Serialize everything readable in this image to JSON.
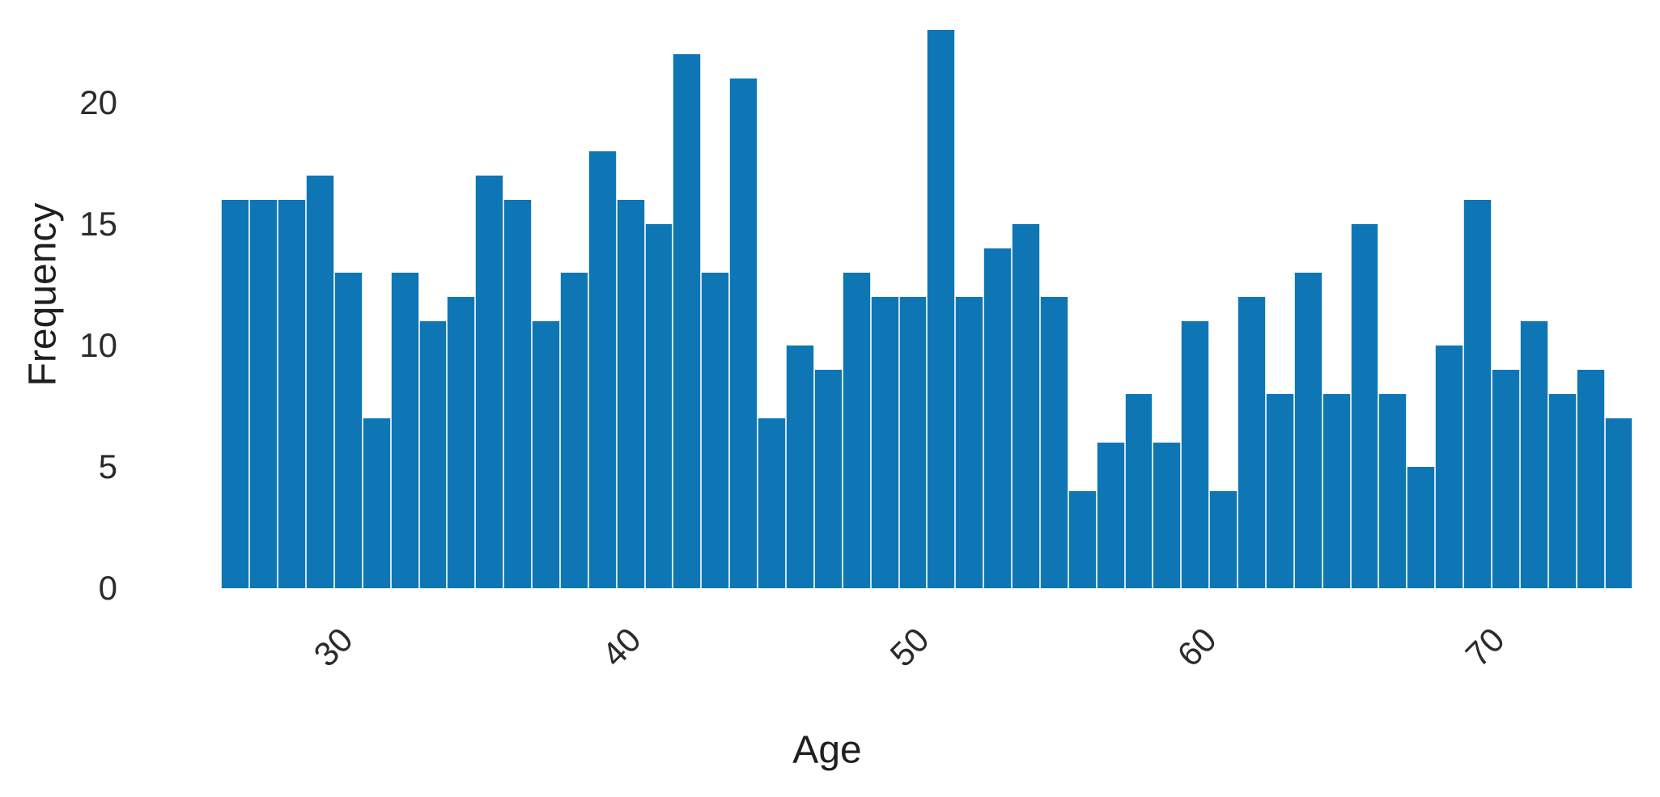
{
  "chart_data": {
    "type": "bar",
    "subtype": "histogram",
    "title": "",
    "xlabel": "Age",
    "ylabel": "Frequency",
    "categories": [
      26,
      27,
      28,
      29,
      30,
      31,
      32,
      33,
      34,
      35,
      36,
      37,
      38,
      39,
      40,
      41,
      42,
      43,
      44,
      45,
      46,
      47,
      48,
      49,
      50,
      51,
      52,
      53,
      54,
      55,
      56,
      57,
      58,
      59,
      60,
      61,
      62,
      63,
      64,
      65,
      66,
      67,
      68,
      69,
      70,
      71,
      72,
      73,
      74,
      75
    ],
    "values": [
      16,
      16,
      16,
      17,
      13,
      7,
      13,
      11,
      12,
      17,
      16,
      11,
      13,
      18,
      16,
      15,
      22,
      13,
      21,
      7,
      10,
      9,
      13,
      12,
      12,
      23,
      12,
      14,
      15,
      12,
      4,
      6,
      8,
      6,
      11,
      4,
      12,
      8,
      13,
      8,
      15,
      8,
      5,
      10,
      16,
      9,
      11,
      8,
      9,
      7
    ],
    "bin_start": 26,
    "bin_end": 75,
    "num_bins": 50,
    "xticks": [
      30,
      40,
      50,
      60,
      70
    ],
    "yticks": [
      0,
      5,
      10,
      15,
      20
    ],
    "ylim": [
      0,
      23.5
    ],
    "grid": false,
    "legend": "none",
    "bar_color": "#0e76b5",
    "bar_edge_color": "#cfe4f2",
    "text_color": "#2b2b2b"
  },
  "labels": {
    "x_axis": "Age",
    "y_axis": "Frequency"
  }
}
